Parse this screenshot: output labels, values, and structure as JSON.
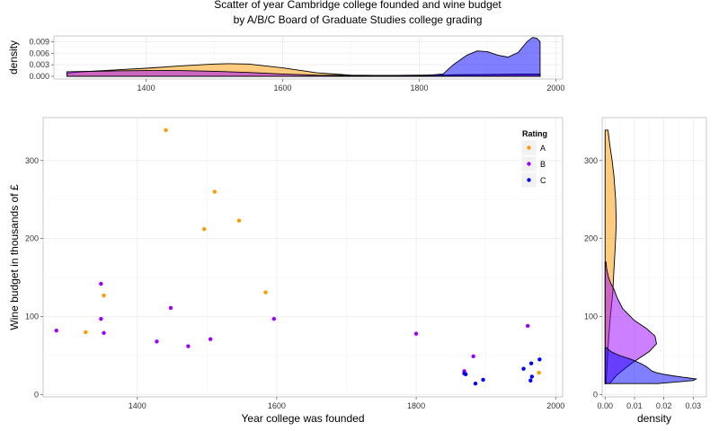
{
  "title_line1": "Scatter of year Cambridge college founded and wine budget",
  "title_line2": "by A/B/C Board of Graduate Studies college grading",
  "colors": {
    "A": "#ff9900",
    "B": "#9900ff",
    "C": "#0000ff"
  },
  "chart_data": [
    {
      "type": "scatter",
      "id": "main",
      "xlabel": "Year college was founded",
      "ylabel": "Wine budget in thousands of £",
      "xlim": [
        1265,
        2010
      ],
      "ylim": [
        -3,
        355
      ],
      "xticks": [
        1400,
        1600,
        1800,
        2000
      ],
      "yticks": [
        0,
        100,
        200,
        300
      ],
      "grid": true,
      "legend": {
        "title": "Rating",
        "position": "top-right",
        "entries": [
          "A",
          "B",
          "C"
        ]
      },
      "series": [
        {
          "name": "A",
          "points": [
            [
              1326,
              80
            ],
            [
              1352,
              127
            ],
            [
              1441,
              339
            ],
            [
              1496,
              212
            ],
            [
              1511,
              260
            ],
            [
              1546,
              223
            ],
            [
              1584,
              131
            ],
            [
              1976,
              28
            ]
          ]
        },
        {
          "name": "B",
          "points": [
            [
              1284,
              82
            ],
            [
              1348,
              142
            ],
            [
              1348,
              97
            ],
            [
              1352,
              79
            ],
            [
              1428,
              68
            ],
            [
              1448,
              111
            ],
            [
              1473,
              62
            ],
            [
              1505,
              71
            ],
            [
              1596,
              97
            ],
            [
              1800,
              78
            ],
            [
              1869,
              30
            ],
            [
              1882,
              49
            ],
            [
              1960,
              88
            ]
          ]
        },
        {
          "name": "C",
          "points": [
            [
              1869,
              27
            ],
            [
              1871,
              26
            ],
            [
              1885,
              14
            ],
            [
              1896,
              19
            ],
            [
              1954,
              33
            ],
            [
              1964,
              18
            ],
            [
              1965,
              40
            ],
            [
              1966,
              23
            ],
            [
              1977,
              45
            ]
          ]
        }
      ]
    },
    {
      "type": "area",
      "id": "top-density",
      "ylabel": "density",
      "xlim": [
        1265,
        2010
      ],
      "ylim": [
        0,
        0.0105
      ],
      "xticks": [
        1400,
        1600,
        1800,
        2000
      ],
      "yticks": [
        0.0,
        0.003,
        0.006,
        0.009
      ],
      "ytick_labels": [
        "0.000",
        "0.003",
        "0.006",
        "0.009"
      ],
      "series": [
        {
          "name": "A",
          "x": [
            1284,
            1300,
            1350,
            1400,
            1450,
            1500,
            1520,
            1550,
            1600,
            1650,
            1700,
            1750,
            1800,
            1850,
            1900,
            1950,
            1977
          ],
          "y": [
            0.0008,
            0.0011,
            0.0016,
            0.0021,
            0.0027,
            0.0032,
            0.0033,
            0.0032,
            0.0022,
            0.0009,
            0.0003,
            0.0002,
            0.0002,
            0.0003,
            0.0004,
            0.0005,
            0.0005
          ]
        },
        {
          "name": "B",
          "x": [
            1284,
            1350,
            1400,
            1450,
            1500,
            1550,
            1600,
            1650,
            1700,
            1750,
            1800,
            1850,
            1900,
            1950,
            1977
          ],
          "y": [
            0.0012,
            0.0014,
            0.0015,
            0.0015,
            0.0013,
            0.001,
            0.0006,
            0.0003,
            0.0002,
            0.0002,
            0.0003,
            0.0004,
            0.0005,
            0.0006,
            0.0006
          ]
        },
        {
          "name": "C",
          "x": [
            1284,
            1600,
            1800,
            1835,
            1850,
            1870,
            1885,
            1900,
            1915,
            1930,
            1945,
            1958,
            1966,
            1972,
            1977
          ],
          "y": [
            0,
            0,
            0.0001,
            0.0006,
            0.003,
            0.0055,
            0.0066,
            0.0064,
            0.0055,
            0.005,
            0.0062,
            0.009,
            0.0101,
            0.0099,
            0.009
          ]
        }
      ]
    },
    {
      "type": "area",
      "id": "right-density",
      "xlabel": "density",
      "xlim": [
        -0.001,
        0.0345
      ],
      "ylim": [
        -3,
        355
      ],
      "xticks": [
        0.0,
        0.01,
        0.02,
        0.03
      ],
      "xtick_labels": [
        "0.00",
        "0.01",
        "0.02",
        "0.03"
      ],
      "yticks": [
        0,
        100,
        200,
        300
      ],
      "series": [
        {
          "name": "A",
          "y": [
            14,
            30,
            60,
            100,
            130,
            160,
            180,
            200,
            220,
            250,
            280,
            300,
            320,
            339
          ],
          "x": [
            0.0003,
            0.0006,
            0.001,
            0.0018,
            0.0026,
            0.003,
            0.0033,
            0.0036,
            0.0038,
            0.0036,
            0.003,
            0.0024,
            0.0016,
            0.001
          ]
        },
        {
          "name": "B",
          "y": [
            14,
            25,
            40,
            55,
            65,
            75,
            85,
            95,
            110,
            125,
            135,
            142,
            150,
            160,
            170
          ],
          "x": [
            0.0015,
            0.004,
            0.009,
            0.015,
            0.0175,
            0.017,
            0.014,
            0.01,
            0.006,
            0.004,
            0.003,
            0.002,
            0.0012,
            0.0006,
            0.0003
          ]
        },
        {
          "name": "C",
          "y": [
            14,
            18,
            20,
            22,
            24,
            26,
            28,
            30,
            33,
            36,
            40,
            45,
            50,
            55,
            60
          ],
          "x": [
            0.018,
            0.03,
            0.031,
            0.027,
            0.023,
            0.02,
            0.0175,
            0.016,
            0.015,
            0.014,
            0.012,
            0.009,
            0.005,
            0.002,
            0.0005
          ]
        }
      ]
    }
  ]
}
